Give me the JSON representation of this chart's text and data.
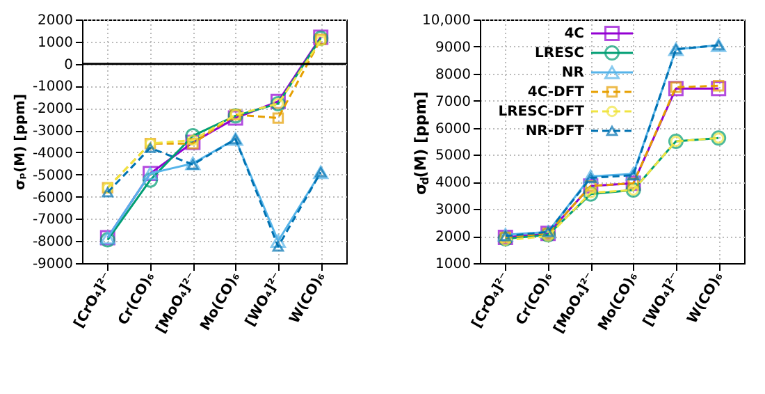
{
  "chart_data": [
    {
      "type": "line",
      "ylabel": "σₚ(M) [ppm]",
      "categories": [
        "[CrO₄]²⁻",
        "Cr(CO)₆",
        "[MoO₄]²⁻",
        "Mo(CO)₆",
        "[WO₄]²⁻",
        "W(CO)₆"
      ],
      "ylim": [
        -9000,
        2000
      ],
      "yticks": [
        -9000,
        -8000,
        -7000,
        -6000,
        -5000,
        -4000,
        -3000,
        -2000,
        -1000,
        0,
        1000,
        2000
      ],
      "grid": true,
      "ref_lines": [
        {
          "axis": "y",
          "value": 0,
          "color": "#000000"
        }
      ],
      "series": [
        {
          "color": "#9400d3",
          "marker": "square",
          "line_style": "solid",
          "values": [
            -7850,
            -4950,
            -3550,
            -2450,
            -1700,
            1200
          ]
        },
        {
          "color": "#009e73",
          "marker": "circle",
          "line_style": "solid",
          "values": [
            -7950,
            -5250,
            -3250,
            -2350,
            -1800,
            1150
          ]
        },
        {
          "color": "#56b4e9",
          "marker": "triangle",
          "line_style": "solid",
          "values": [
            -7850,
            -4950,
            -4500,
            -3400,
            -8000,
            -4900
          ]
        },
        {
          "color": "#e69f00",
          "marker": "square",
          "line_style": "dashed",
          "values": [
            -5600,
            -3600,
            -3600,
            -2300,
            -2450,
            1100
          ]
        },
        {
          "color": "#f0e442",
          "marker": "circle",
          "line_style": "dashed",
          "values": [
            -5600,
            -3600,
            -3450,
            -2300,
            -1800,
            1050
          ]
        },
        {
          "color": "#0072b2",
          "marker": "triangle",
          "line_style": "dashed",
          "values": [
            -5800,
            -3800,
            -4550,
            -3400,
            -8250,
            -4900
          ]
        }
      ]
    },
    {
      "type": "line",
      "ylabel": "σ$_{d}$(M) [ppm]",
      "categories": [
        "[CrO₄]²⁻",
        "Cr(CO)₆",
        "[MoO₄]²⁻",
        "Mo(CO)₆",
        "[WO₄]²⁻",
        "W(CO)₆"
      ],
      "ylim": [
        1000,
        10000
      ],
      "yticks": [
        1000,
        2000,
        3000,
        4000,
        5000,
        6000,
        7000,
        8000,
        9000,
        {
          "value": 10000,
          "label": "10,000"
        }
      ],
      "grid": true,
      "legend": "top left",
      "series": [
        {
          "name": "4C",
          "color": "#9400d3",
          "marker": "square",
          "line_style": "solid",
          "values": [
            1950,
            2100,
            3850,
            3950,
            7450,
            7450
          ]
        },
        {
          "name": "LRESC",
          "color": "#009e73",
          "marker": "circle",
          "line_style": "solid",
          "values": [
            1900,
            2050,
            3550,
            3700,
            5500,
            5620
          ]
        },
        {
          "name": "NR",
          "color": "#56b4e9",
          "marker": "triangle",
          "line_style": "solid",
          "values": [
            2050,
            2150,
            4200,
            4300,
            8900,
            9050
          ]
        },
        {
          "name": "4C-DFT",
          "color": "#e69f00",
          "marker": "square",
          "line_style": "dashed",
          "values": [
            1950,
            2100,
            3850,
            3950,
            7500,
            7550
          ]
        },
        {
          "name": "LRESC-DFT",
          "color": "#f0e442",
          "marker": "circle",
          "line_style": "dashed",
          "values": [
            1850,
            2000,
            3600,
            3700,
            5500,
            5620
          ]
        },
        {
          "name": "NR-DFT",
          "color": "#0072b2",
          "marker": "triangle",
          "line_style": "dashed",
          "values": [
            2000,
            2150,
            4150,
            4250,
            8900,
            9050
          ]
        }
      ]
    }
  ]
}
